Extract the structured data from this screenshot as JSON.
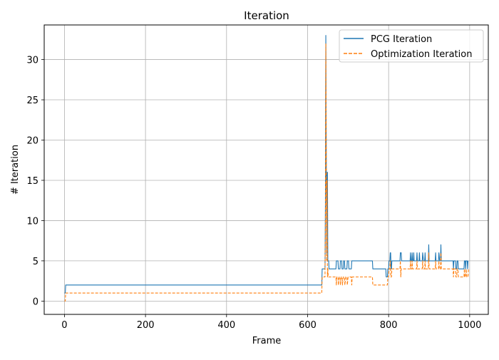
{
  "chart_data": {
    "type": "line",
    "title": "Iteration",
    "xlabel": "Frame",
    "ylabel": "# Iteration",
    "xlim": [
      -50,
      1046
    ],
    "ylim": [
      -1.65,
      34.3
    ],
    "xticks": [
      0,
      200,
      400,
      600,
      800,
      1000
    ],
    "yticks": [
      0,
      5,
      10,
      15,
      20,
      25,
      30
    ],
    "grid": true,
    "legend_position": "top-right",
    "series": [
      {
        "name": "PCG Iteration",
        "color": "#1f77b4",
        "style": "solid",
        "points": [
          [
            0,
            1
          ],
          [
            2,
            1
          ],
          [
            3,
            2
          ],
          [
            635,
            2
          ],
          [
            636,
            4
          ],
          [
            643,
            4
          ],
          [
            644,
            12
          ],
          [
            645,
            33
          ],
          [
            646,
            20
          ],
          [
            647,
            6
          ],
          [
            648,
            16
          ],
          [
            649,
            16
          ],
          [
            650,
            5
          ],
          [
            652,
            5
          ],
          [
            653,
            4
          ],
          [
            670,
            4
          ],
          [
            671,
            5
          ],
          [
            675,
            5
          ],
          [
            676,
            4
          ],
          [
            680,
            4
          ],
          [
            681,
            5
          ],
          [
            684,
            5
          ],
          [
            685,
            4
          ],
          [
            688,
            4
          ],
          [
            689,
            5
          ],
          [
            691,
            5
          ],
          [
            692,
            4
          ],
          [
            697,
            4
          ],
          [
            698,
            5
          ],
          [
            701,
            5
          ],
          [
            702,
            4
          ],
          [
            708,
            4
          ],
          [
            709,
            5
          ],
          [
            760,
            5
          ],
          [
            761,
            4
          ],
          [
            793,
            4
          ],
          [
            794,
            3
          ],
          [
            797,
            3
          ],
          [
            798,
            4
          ],
          [
            800,
            4
          ],
          [
            801,
            5
          ],
          [
            803,
            5
          ],
          [
            804,
            6
          ],
          [
            805,
            6
          ],
          [
            806,
            4
          ],
          [
            807,
            4
          ],
          [
            808,
            5
          ],
          [
            828,
            5
          ],
          [
            829,
            6
          ],
          [
            831,
            6
          ],
          [
            832,
            5
          ],
          [
            853,
            5
          ],
          [
            854,
            6
          ],
          [
            855,
            5
          ],
          [
            857,
            5
          ],
          [
            858,
            6
          ],
          [
            859,
            5
          ],
          [
            861,
            5
          ],
          [
            862,
            6
          ],
          [
            863,
            5
          ],
          [
            869,
            5
          ],
          [
            870,
            6
          ],
          [
            871,
            5
          ],
          [
            875,
            5
          ],
          [
            876,
            6
          ],
          [
            877,
            5
          ],
          [
            883,
            5
          ],
          [
            884,
            6
          ],
          [
            886,
            5
          ],
          [
            889,
            5
          ],
          [
            890,
            6
          ],
          [
            891,
            5
          ],
          [
            898,
            5
          ],
          [
            899,
            7
          ],
          [
            900,
            5
          ],
          [
            915,
            5
          ],
          [
            916,
            6
          ],
          [
            917,
            5
          ],
          [
            923,
            5
          ],
          [
            924,
            6
          ],
          [
            926,
            5
          ],
          [
            928,
            5
          ],
          [
            929,
            7
          ],
          [
            930,
            5
          ],
          [
            959,
            5
          ],
          [
            960,
            4
          ],
          [
            961,
            5
          ],
          [
            965,
            5
          ],
          [
            966,
            4
          ],
          [
            968,
            4
          ],
          [
            969,
            5
          ],
          [
            971,
            5
          ],
          [
            972,
            4
          ],
          [
            986,
            4
          ],
          [
            987,
            5
          ],
          [
            989,
            5
          ],
          [
            990,
            4
          ],
          [
            991,
            5
          ],
          [
            994,
            5
          ],
          [
            995,
            4
          ],
          [
            996,
            5
          ]
        ]
      },
      {
        "name": "Optimization Iteration",
        "color": "#ff7f0e",
        "style": "dashed",
        "points": [
          [
            0,
            0
          ],
          [
            2,
            0
          ],
          [
            3,
            1
          ],
          [
            635,
            1
          ],
          [
            636,
            3
          ],
          [
            643,
            3
          ],
          [
            644,
            10
          ],
          [
            645,
            32
          ],
          [
            646,
            20
          ],
          [
            647,
            5
          ],
          [
            648,
            15
          ],
          [
            649,
            3
          ],
          [
            650,
            4
          ],
          [
            651,
            3
          ],
          [
            670,
            3
          ],
          [
            671,
            2
          ],
          [
            672,
            3
          ],
          [
            675,
            3
          ],
          [
            676,
            2
          ],
          [
            678,
            3
          ],
          [
            680,
            3
          ],
          [
            681,
            2
          ],
          [
            683,
            3
          ],
          [
            685,
            3
          ],
          [
            686,
            2
          ],
          [
            688,
            3
          ],
          [
            691,
            3
          ],
          [
            692,
            2
          ],
          [
            694,
            3
          ],
          [
            697,
            3
          ],
          [
            698,
            2
          ],
          [
            700,
            3
          ],
          [
            708,
            3
          ],
          [
            709,
            2
          ],
          [
            710,
            3
          ],
          [
            760,
            3
          ],
          [
            761,
            2
          ],
          [
            793,
            2
          ],
          [
            794,
            2
          ],
          [
            797,
            2
          ],
          [
            798,
            3
          ],
          [
            800,
            3
          ],
          [
            801,
            4
          ],
          [
            803,
            4
          ],
          [
            804,
            5
          ],
          [
            805,
            3
          ],
          [
            807,
            3
          ],
          [
            808,
            4
          ],
          [
            828,
            4
          ],
          [
            829,
            5
          ],
          [
            830,
            3
          ],
          [
            831,
            4
          ],
          [
            853,
            4
          ],
          [
            854,
            5
          ],
          [
            855,
            4
          ],
          [
            857,
            4
          ],
          [
            858,
            5
          ],
          [
            859,
            4
          ],
          [
            869,
            4
          ],
          [
            870,
            5
          ],
          [
            871,
            4
          ],
          [
            883,
            4
          ],
          [
            884,
            5
          ],
          [
            885,
            4
          ],
          [
            889,
            4
          ],
          [
            890,
            5
          ],
          [
            891,
            4
          ],
          [
            898,
            4
          ],
          [
            899,
            6
          ],
          [
            900,
            4
          ],
          [
            915,
            4
          ],
          [
            916,
            5
          ],
          [
            917,
            4
          ],
          [
            923,
            4
          ],
          [
            924,
            5
          ],
          [
            925,
            4
          ],
          [
            928,
            4
          ],
          [
            929,
            6
          ],
          [
            930,
            4
          ],
          [
            959,
            4
          ],
          [
            960,
            3
          ],
          [
            961,
            4
          ],
          [
            965,
            4
          ],
          [
            966,
            3
          ],
          [
            968,
            3
          ],
          [
            969,
            4
          ],
          [
            971,
            4
          ],
          [
            972,
            3
          ],
          [
            986,
            3
          ],
          [
            987,
            4
          ],
          [
            988,
            3
          ],
          [
            990,
            3
          ],
          [
            991,
            4
          ],
          [
            993,
            3
          ],
          [
            996,
            3
          ],
          [
            997,
            4
          ]
        ]
      }
    ]
  }
}
